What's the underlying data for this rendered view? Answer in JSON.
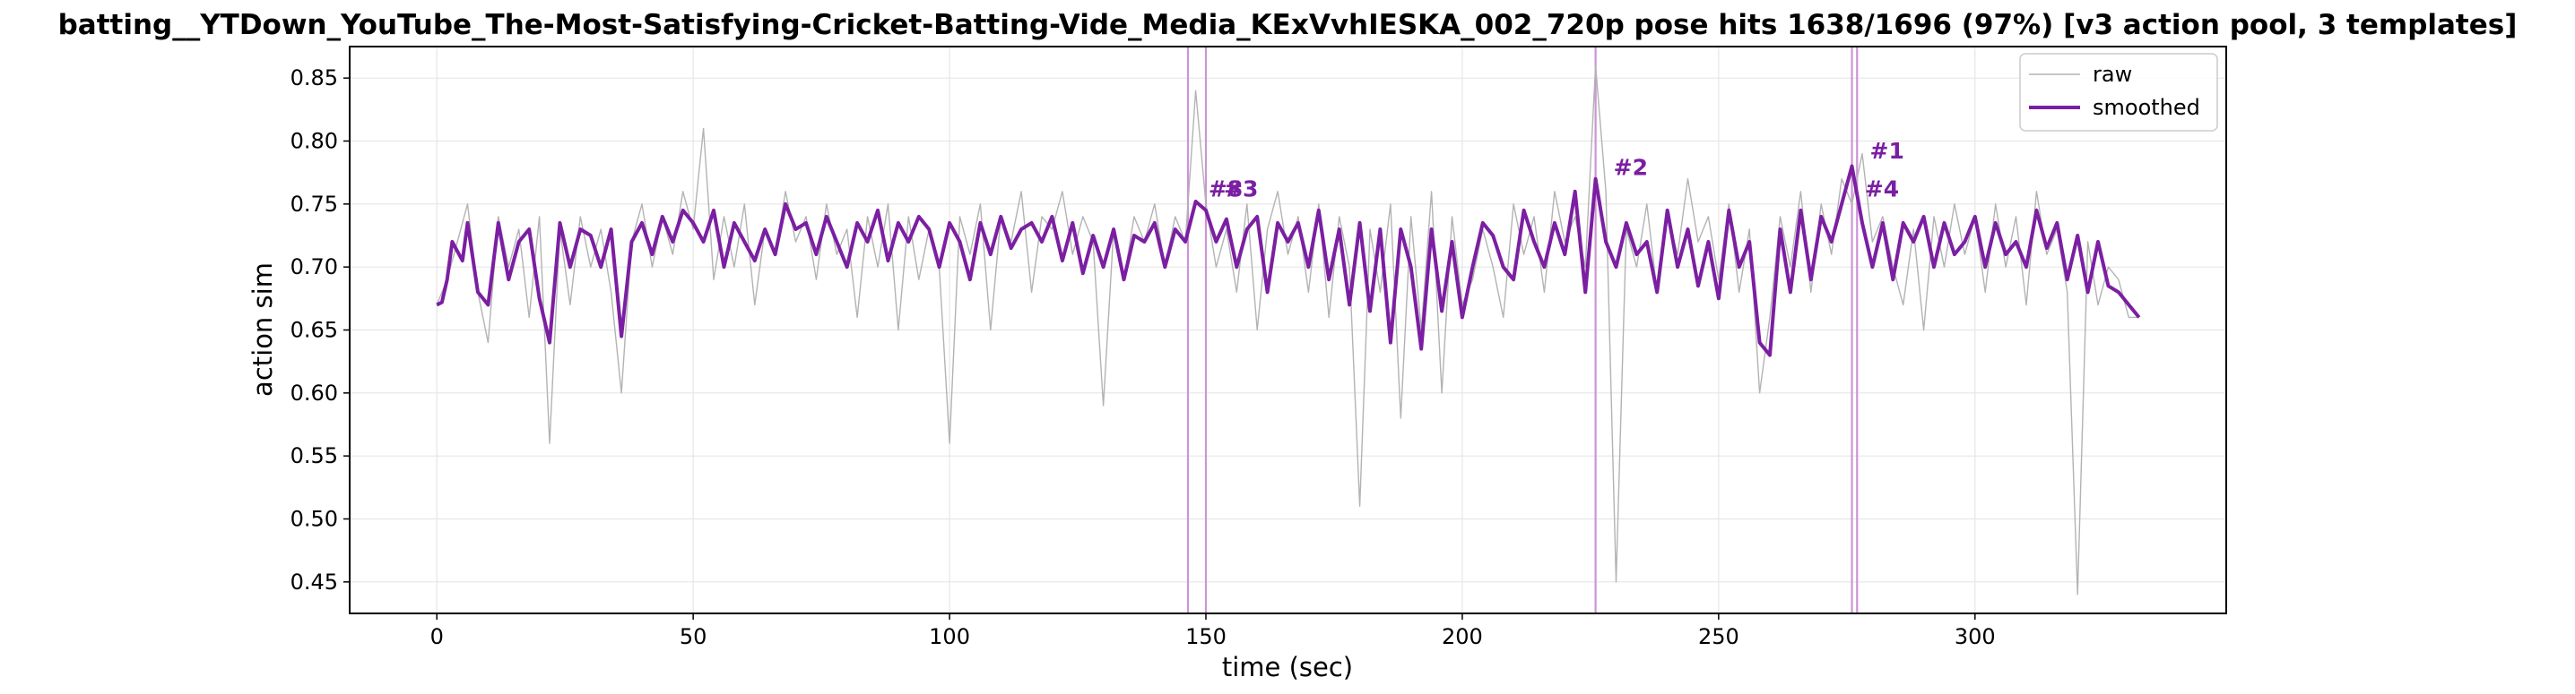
{
  "chart_data": {
    "type": "line",
    "title": "batting__YTDown_YouTube_The-Most-Satisfying-Cricket-Batting-Vide_Media_KExVvhIESKA_002_720p    pose hits 1638/1696  (97%)    [v3 action pool, 3 templates]",
    "xlabel": "time (sec)",
    "ylabel": "action sim",
    "xlim": [
      -17,
      349
    ],
    "ylim": [
      0.425,
      0.875
    ],
    "xticks": [
      0,
      50,
      100,
      150,
      200,
      250,
      300
    ],
    "xtick_labels": [
      "0",
      "50",
      "100",
      "150",
      "200",
      "250",
      "300"
    ],
    "yticks": [
      0.45,
      0.5,
      0.55,
      0.6,
      0.65,
      0.7,
      0.75,
      0.8,
      0.85
    ],
    "ytick_labels": [
      "0.45",
      "0.50",
      "0.55",
      "0.60",
      "0.65",
      "0.70",
      "0.75",
      "0.80",
      "0.85"
    ],
    "grid": true,
    "legend_position": "top-right",
    "colors": {
      "raw": "#b3b3b3",
      "smoothed": "#7b1fa2",
      "marker_line": "#ce93d8",
      "annotation": "#7b1fa2"
    },
    "series": [
      {
        "name": "raw",
        "x": [
          0,
          2,
          4,
          6,
          8,
          10,
          12,
          14,
          16,
          18,
          20,
          22,
          24,
          26,
          28,
          30,
          32,
          34,
          36,
          38,
          40,
          42,
          44,
          46,
          48,
          50,
          52,
          54,
          56,
          58,
          60,
          62,
          64,
          66,
          68,
          70,
          72,
          74,
          76,
          78,
          80,
          82,
          84,
          86,
          88,
          90,
          92,
          94,
          96,
          98,
          100,
          102,
          104,
          106,
          108,
          110,
          112,
          114,
          116,
          118,
          120,
          122,
          124,
          126,
          128,
          130,
          132,
          134,
          136,
          138,
          140,
          142,
          144,
          146,
          148,
          150,
          152,
          154,
          156,
          158,
          160,
          162,
          164,
          166,
          168,
          170,
          172,
          174,
          176,
          178,
          180,
          182,
          184,
          186,
          188,
          190,
          192,
          194,
          196,
          198,
          200,
          202,
          204,
          206,
          208,
          210,
          212,
          214,
          216,
          218,
          220,
          222,
          224,
          226,
          228,
          230,
          232,
          234,
          236,
          238,
          240,
          242,
          244,
          246,
          248,
          250,
          252,
          254,
          256,
          258,
          260,
          262,
          264,
          266,
          268,
          270,
          272,
          274,
          276,
          278,
          280,
          282,
          284,
          286,
          288,
          290,
          292,
          294,
          296,
          298,
          300,
          302,
          304,
          306,
          308,
          310,
          312,
          314,
          316,
          318,
          320,
          322,
          324,
          326,
          328,
          330,
          332
        ],
        "y": [
          0.67,
          0.69,
          0.72,
          0.75,
          0.68,
          0.64,
          0.74,
          0.7,
          0.73,
          0.66,
          0.74,
          0.56,
          0.73,
          0.67,
          0.74,
          0.7,
          0.73,
          0.68,
          0.6,
          0.72,
          0.75,
          0.7,
          0.74,
          0.71,
          0.76,
          0.73,
          0.81,
          0.69,
          0.74,
          0.7,
          0.75,
          0.67,
          0.73,
          0.71,
          0.76,
          0.72,
          0.74,
          0.69,
          0.75,
          0.71,
          0.73,
          0.66,
          0.74,
          0.7,
          0.75,
          0.65,
          0.74,
          0.69,
          0.73,
          0.7,
          0.56,
          0.74,
          0.71,
          0.75,
          0.65,
          0.74,
          0.72,
          0.76,
          0.68,
          0.74,
          0.73,
          0.76,
          0.71,
          0.74,
          0.72,
          0.59,
          0.73,
          0.69,
          0.74,
          0.72,
          0.75,
          0.7,
          0.74,
          0.72,
          0.84,
          0.75,
          0.7,
          0.73,
          0.68,
          0.75,
          0.65,
          0.73,
          0.76,
          0.71,
          0.74,
          0.68,
          0.75,
          0.66,
          0.74,
          0.7,
          0.51,
          0.73,
          0.68,
          0.75,
          0.58,
          0.74,
          0.65,
          0.76,
          0.6,
          0.74,
          0.67,
          0.69,
          0.73,
          0.7,
          0.66,
          0.75,
          0.71,
          0.74,
          0.68,
          0.76,
          0.72,
          0.74,
          0.7,
          0.86,
          0.76,
          0.45,
          0.73,
          0.7,
          0.75,
          0.68,
          0.74,
          0.71,
          0.77,
          0.72,
          0.74,
          0.69,
          0.75,
          0.68,
          0.73,
          0.6,
          0.66,
          0.74,
          0.7,
          0.76,
          0.68,
          0.75,
          0.71,
          0.77,
          0.75,
          0.79,
          0.72,
          0.74,
          0.7,
          0.67,
          0.73,
          0.65,
          0.74,
          0.7,
          0.75,
          0.71,
          0.74,
          0.68,
          0.75,
          0.7,
          0.74,
          0.67,
          0.76,
          0.71,
          0.73,
          0.68,
          0.44,
          0.72,
          0.67,
          0.7,
          0.69,
          0.66,
          0.66
        ]
      },
      {
        "name": "smoothed",
        "x": [
          0,
          1,
          2,
          3,
          5,
          6,
          8,
          10,
          12,
          14,
          16,
          18,
          20,
          22,
          24,
          26,
          28,
          30,
          32,
          34,
          36,
          38,
          40,
          42,
          44,
          46,
          48,
          50,
          52,
          54,
          56,
          58,
          60,
          62,
          64,
          66,
          68,
          70,
          72,
          74,
          76,
          78,
          80,
          82,
          84,
          86,
          88,
          90,
          92,
          94,
          96,
          98,
          100,
          102,
          104,
          106,
          108,
          110,
          112,
          114,
          116,
          118,
          120,
          122,
          124,
          126,
          128,
          130,
          132,
          134,
          136,
          138,
          140,
          142,
          144,
          146,
          148,
          150,
          152,
          154,
          156,
          158,
          160,
          162,
          164,
          166,
          168,
          170,
          172,
          174,
          176,
          178,
          180,
          182,
          184,
          186,
          188,
          190,
          192,
          194,
          196,
          198,
          200,
          202,
          204,
          206,
          208,
          210,
          212,
          214,
          216,
          218,
          220,
          222,
          224,
          226,
          228,
          230,
          232,
          234,
          236,
          238,
          240,
          242,
          244,
          246,
          248,
          250,
          252,
          254,
          256,
          258,
          260,
          262,
          264,
          266,
          268,
          270,
          272,
          274,
          276,
          278,
          280,
          282,
          284,
          286,
          288,
          290,
          292,
          294,
          296,
          298,
          300,
          302,
          304,
          306,
          308,
          310,
          312,
          314,
          316,
          318,
          320,
          322,
          324,
          326,
          328,
          330,
          332
        ],
        "y": [
          0.67,
          0.672,
          0.69,
          0.72,
          0.705,
          0.735,
          0.68,
          0.67,
          0.735,
          0.69,
          0.72,
          0.73,
          0.675,
          0.64,
          0.735,
          0.7,
          0.73,
          0.725,
          0.7,
          0.73,
          0.645,
          0.72,
          0.735,
          0.71,
          0.74,
          0.72,
          0.745,
          0.735,
          0.72,
          0.745,
          0.7,
          0.735,
          0.72,
          0.705,
          0.73,
          0.71,
          0.75,
          0.73,
          0.735,
          0.71,
          0.74,
          0.72,
          0.7,
          0.735,
          0.72,
          0.745,
          0.705,
          0.735,
          0.72,
          0.74,
          0.73,
          0.7,
          0.735,
          0.72,
          0.69,
          0.735,
          0.71,
          0.74,
          0.715,
          0.73,
          0.735,
          0.72,
          0.74,
          0.705,
          0.735,
          0.695,
          0.725,
          0.7,
          0.73,
          0.69,
          0.725,
          0.72,
          0.735,
          0.7,
          0.73,
          0.72,
          0.752,
          0.745,
          0.72,
          0.738,
          0.7,
          0.73,
          0.74,
          0.68,
          0.735,
          0.72,
          0.735,
          0.7,
          0.745,
          0.69,
          0.73,
          0.67,
          0.735,
          0.665,
          0.73,
          0.64,
          0.73,
          0.7,
          0.635,
          0.73,
          0.665,
          0.72,
          0.66,
          0.7,
          0.735,
          0.725,
          0.7,
          0.69,
          0.745,
          0.72,
          0.7,
          0.735,
          0.71,
          0.76,
          0.68,
          0.77,
          0.72,
          0.7,
          0.735,
          0.71,
          0.72,
          0.68,
          0.745,
          0.7,
          0.73,
          0.685,
          0.72,
          0.675,
          0.745,
          0.7,
          0.72,
          0.64,
          0.63,
          0.73,
          0.68,
          0.745,
          0.69,
          0.74,
          0.72,
          0.75,
          0.78,
          0.735,
          0.7,
          0.735,
          0.69,
          0.735,
          0.72,
          0.74,
          0.7,
          0.735,
          0.71,
          0.72,
          0.74,
          0.7,
          0.735,
          0.71,
          0.72,
          0.7,
          0.745,
          0.715,
          0.735,
          0.69,
          0.725,
          0.68,
          0.72,
          0.685,
          0.68,
          0.67,
          0.66
        ]
      }
    ],
    "vertical_markers": [
      146.5,
      150,
      226,
      276,
      277
    ],
    "annotations": [
      {
        "label": "#8",
        "x": 150.5,
        "y": 0.756
      },
      {
        "label": "#3",
        "x": 153.5,
        "y": 0.756
      },
      {
        "label": "#2",
        "x": 229.5,
        "y": 0.773
      },
      {
        "label": "#1",
        "x": 279.5,
        "y": 0.786
      },
      {
        "label": "#4",
        "x": 278.5,
        "y": 0.756
      }
    ]
  }
}
